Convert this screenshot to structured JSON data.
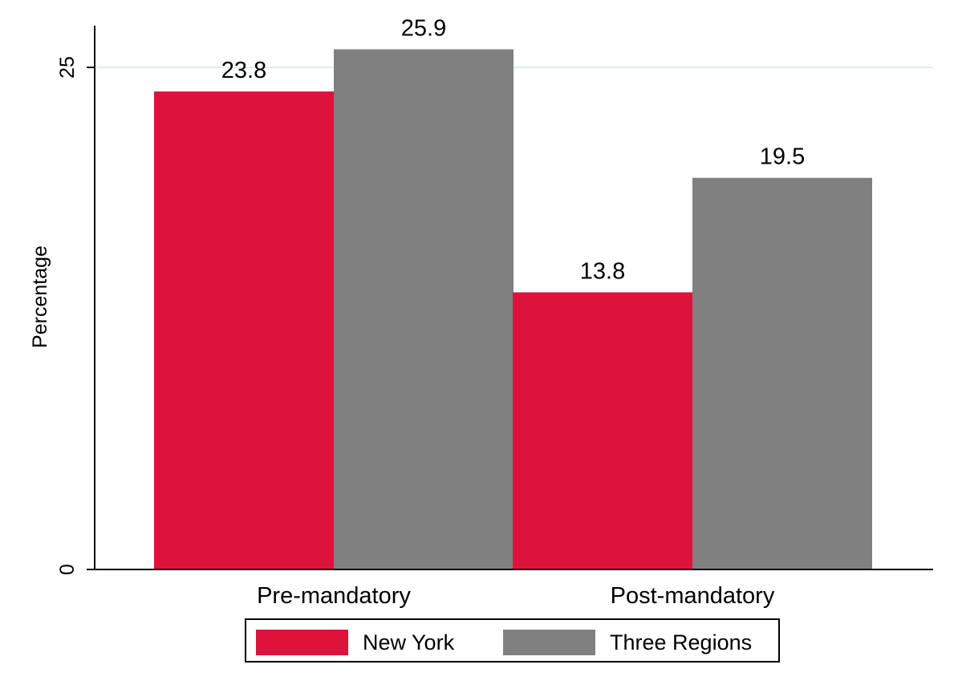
{
  "chart_data": {
    "type": "bar",
    "title": "",
    "xlabel": "",
    "ylabel": "Percentage",
    "ylim": [
      0,
      27
    ],
    "yticks": [
      0,
      25
    ],
    "ytick_labels": [
      "0",
      "25"
    ],
    "grid": "horizontal",
    "legend_position": "bottom",
    "categories": [
      "Pre-mandatory",
      "Post-mandatory"
    ],
    "series": [
      {
        "name": "New York",
        "values": [
          23.8,
          13.8
        ],
        "labels": [
          "23.8",
          "13.8"
        ],
        "color": "#dc143c"
      },
      {
        "name": "Three Regions",
        "values": [
          25.9,
          19.5
        ],
        "labels": [
          "25.9",
          "19.5"
        ],
        "color": "#808080"
      }
    ]
  }
}
